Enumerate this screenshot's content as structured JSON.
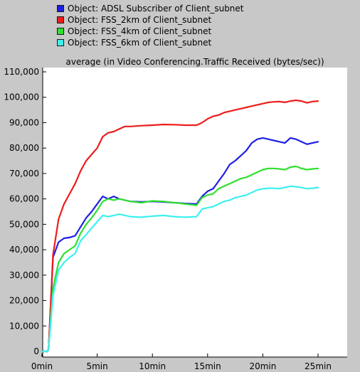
{
  "legend": [
    {
      "label": "Object: ADSL Subscriber of Client_subnet",
      "color": "#1f1fe6"
    },
    {
      "label": "Object: FSS_2km of Client_subnet",
      "color": "#ee1c1c"
    },
    {
      "label": "Object: FSS_4km of Client_subnet",
      "color": "#2fe02f"
    },
    {
      "label": "Object: FSS_6km of Client_subnet",
      "color": "#3ef0f0"
    }
  ],
  "chart_data": {
    "type": "line",
    "title": "average (in Video Conferencing.Traffic Received (bytes/sec))",
    "xlabel": "",
    "ylabel": "",
    "xlim": [
      0,
      27
    ],
    "ylim": [
      0,
      110000
    ],
    "x_ticks": [
      0,
      5,
      10,
      15,
      20,
      25
    ],
    "x_tick_labels": [
      "0min",
      "5min",
      "10min",
      "15min",
      "20min",
      "25min"
    ],
    "y_ticks": [
      0,
      10000,
      20000,
      30000,
      40000,
      50000,
      60000,
      70000,
      80000,
      90000,
      100000,
      110000
    ],
    "y_tick_labels": [
      "0",
      "10,000",
      "20,000",
      "30,000",
      "40,000",
      "50,000",
      "60,000",
      "70,000",
      "80,000",
      "90,000",
      "100,000",
      "110,000"
    ],
    "grid": false,
    "legend_position": "top",
    "series": [
      {
        "name": "Object: ADSL Subscriber of Client_subnet",
        "color": "#1f1fe6",
        "x": [
          0,
          0.5,
          0.6,
          1,
          1.5,
          2,
          2.5,
          3,
          3.5,
          4,
          4.5,
          5,
          5.5,
          6,
          6.5,
          7,
          8,
          9,
          10,
          11,
          12,
          13,
          14,
          14.5,
          15,
          15.5,
          16,
          16.5,
          17,
          17.5,
          18,
          18.5,
          19,
          19.5,
          20,
          20.5,
          21,
          21.5,
          22,
          22.5,
          23,
          23.5,
          24,
          24.5,
          25
        ],
        "y": [
          0,
          0,
          1000,
          37000,
          43000,
          44500,
          44800,
          45500,
          49000,
          52500,
          55000,
          58000,
          61000,
          60000,
          61000,
          60000,
          59000,
          58800,
          59000,
          58800,
          58500,
          58200,
          58000,
          61000,
          63000,
          64000,
          67000,
          70000,
          73500,
          75000,
          77000,
          79000,
          82000,
          83500,
          84000,
          83500,
          83000,
          82500,
          82000,
          84000,
          83500,
          82500,
          81500,
          82000,
          82500
        ]
      },
      {
        "name": "Object: FSS_2km of Client_subnet",
        "color": "#ee1c1c",
        "x": [
          0,
          0.5,
          0.6,
          1,
          1.5,
          2,
          2.5,
          3,
          3.5,
          4,
          4.5,
          5,
          5.5,
          6,
          6.5,
          7,
          7.5,
          8,
          9,
          10,
          11,
          12,
          13,
          14,
          14.5,
          15,
          15.5,
          16,
          16.5,
          17,
          17.5,
          18,
          18.5,
          19,
          19.5,
          20,
          20.5,
          21,
          21.5,
          22,
          22.5,
          23,
          23.5,
          24,
          24.5,
          25
        ],
        "y": [
          0,
          0,
          1000,
          38000,
          52000,
          58000,
          62000,
          66000,
          71000,
          75000,
          77500,
          80000,
          84500,
          86000,
          86500,
          87500,
          88500,
          88500,
          88800,
          89000,
          89300,
          89200,
          89000,
          89000,
          90000,
          91500,
          92500,
          93000,
          94000,
          94500,
          95000,
          95500,
          96000,
          96500,
          97000,
          97500,
          98000,
          98200,
          98300,
          98000,
          98500,
          98800,
          98500,
          97800,
          98300,
          98500
        ]
      },
      {
        "name": "Object: FSS_4km of Client_subnet",
        "color": "#2fe02f",
        "x": [
          0,
          0.5,
          0.6,
          1,
          1.5,
          2,
          2.5,
          3,
          3.5,
          4,
          4.5,
          5,
          5.5,
          6,
          6.5,
          7,
          8,
          9,
          10,
          11,
          12,
          13,
          14,
          14.5,
          15,
          15.5,
          16,
          16.5,
          17,
          17.5,
          18,
          18.5,
          19,
          19.5,
          20,
          20.5,
          21,
          21.5,
          22,
          22.5,
          23,
          23.5,
          24,
          24.5,
          25
        ],
        "y": [
          0,
          0,
          1000,
          25000,
          35000,
          38500,
          40000,
          41500,
          46500,
          50000,
          52500,
          55500,
          59000,
          60000,
          59500,
          60000,
          59000,
          58500,
          59200,
          59000,
          58500,
          58000,
          57500,
          60500,
          61500,
          62000,
          64000,
          65000,
          66000,
          67000,
          68000,
          68500,
          69500,
          70500,
          71500,
          72000,
          72000,
          71800,
          71500,
          72500,
          72800,
          72000,
          71500,
          71800,
          72000
        ]
      },
      {
        "name": "Object: FSS_6km of Client_subnet",
        "color": "#3ef0f0",
        "x": [
          0,
          0.5,
          0.6,
          1,
          1.5,
          2,
          2.5,
          3,
          3.5,
          4,
          4.5,
          5,
          5.5,
          6,
          6.5,
          7,
          8,
          9,
          10,
          11,
          12,
          13,
          14,
          14.5,
          15,
          15.5,
          16,
          16.5,
          17,
          17.5,
          18,
          18.5,
          19,
          19.5,
          20,
          20.5,
          21,
          21.5,
          22,
          22.5,
          23,
          23.5,
          24,
          24.5,
          25
        ],
        "y": [
          0,
          0,
          1000,
          22000,
          32000,
          35000,
          37000,
          38500,
          43500,
          46000,
          48500,
          51000,
          53500,
          53000,
          53500,
          54000,
          53000,
          52800,
          53200,
          53500,
          53000,
          52800,
          53000,
          56000,
          56500,
          57000,
          58000,
          59000,
          59500,
          60500,
          61000,
          61500,
          62500,
          63500,
          64000,
          64200,
          64200,
          64000,
          64500,
          65000,
          64800,
          64500,
          64000,
          64200,
          64500
        ]
      }
    ]
  }
}
